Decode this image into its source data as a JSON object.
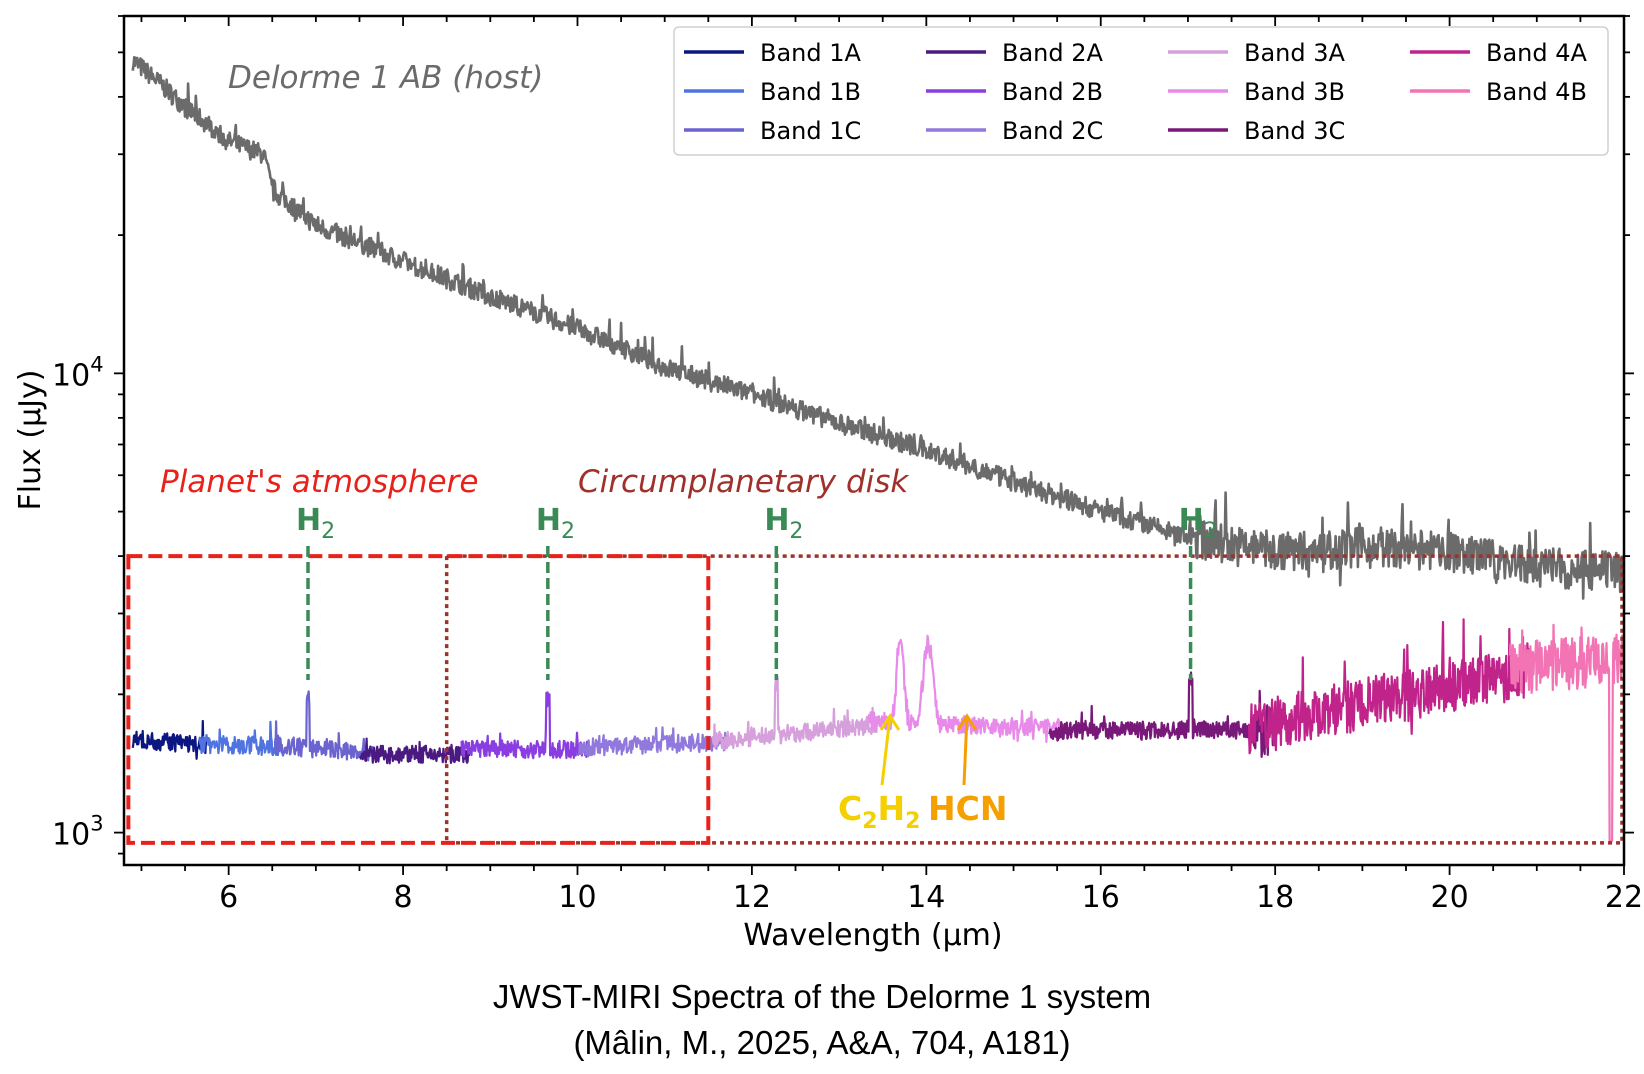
{
  "chart_data": {
    "type": "line",
    "title": "JWST-MIRI Spectra of the Delorme 1 system",
    "subtitle": "(Mâlin, M., 2025, A&A, 704, A181)",
    "xlabel": "Wavelength (μm)",
    "ylabel": "Flux (μJy)",
    "xlim": [
      4.8,
      22
    ],
    "ylim": [
      850,
      60000
    ],
    "yscale": "log",
    "grid": false,
    "x_ticks": [
      6,
      8,
      10,
      12,
      14,
      16,
      18,
      20,
      22
    ],
    "x_tick_labels": [
      "6",
      "8",
      "10",
      "12",
      "14",
      "16",
      "18",
      "20",
      "22"
    ],
    "y_ticks": [
      1000,
      10000
    ],
    "y_tick_labels": [
      {
        "base": "10",
        "exp": "3"
      },
      {
        "base": "10",
        "exp": "4"
      }
    ],
    "legend": {
      "placement": "top-right",
      "entries": [
        {
          "label": "Band 1A",
          "color": "#0b1680"
        },
        {
          "label": "Band 1B",
          "color": "#4f73e0"
        },
        {
          "label": "Band 1C",
          "color": "#6a63d0"
        },
        {
          "label": "Band 2A",
          "color": "#4b1a80"
        },
        {
          "label": "Band 2B",
          "color": "#8a3de0"
        },
        {
          "label": "Band 2C",
          "color": "#9178dc"
        },
        {
          "label": "Band 3A",
          "color": "#d6a0dc"
        },
        {
          "label": "Band 3B",
          "color": "#e88aea"
        },
        {
          "label": "Band 3C",
          "color": "#781878"
        },
        {
          "label": "Band 4A",
          "color": "#c0248a"
        },
        {
          "label": "Band 4B",
          "color": "#f274b4"
        }
      ]
    },
    "series": [
      {
        "name": "Delorme 1 AB (host)",
        "color": "#6b6b6b",
        "x": [
          4.9,
          5.5,
          6.0,
          6.4,
          6.5,
          7.0,
          8.0,
          9.0,
          10.0,
          11.0,
          12.0,
          13.0,
          14.0,
          15.0,
          16.0,
          17.0,
          18.0,
          19.0,
          20.0,
          21.0,
          22.0
        ],
        "y": [
          48000,
          38000,
          32000,
          30000,
          25000,
          21000,
          17500,
          14700,
          12500,
          10300,
          9000,
          7800,
          6800,
          5800,
          5000,
          4400,
          4100,
          4200,
          4100,
          3800,
          3700
        ]
      },
      {
        "name": "Band 1A",
        "color": "#0b1680",
        "x": [
          4.9,
          5.74
        ],
        "y": [
          1600,
          1550
        ]
      },
      {
        "name": "Band 1B",
        "color": "#4f73e0",
        "x": [
          5.66,
          6.63
        ],
        "y": [
          1560,
          1540
        ]
      },
      {
        "name": "Band 1C",
        "color": "#6a63d0",
        "x": [
          6.53,
          7.65
        ],
        "y": [
          1540,
          1500
        ]
      },
      {
        "name": "Band 2A",
        "color": "#4b1a80",
        "x": [
          7.51,
          8.77
        ],
        "y": [
          1480,
          1480
        ]
      },
      {
        "name": "Band 2B",
        "color": "#8a3de0",
        "x": [
          8.67,
          10.13
        ],
        "y": [
          1520,
          1520
        ]
      },
      {
        "name": "Band 2C",
        "color": "#9178dc",
        "x": [
          10.02,
          11.7
        ],
        "y": [
          1530,
          1580
        ]
      },
      {
        "name": "Band 3A",
        "color": "#d6a0dc",
        "x": [
          11.55,
          13.47
        ],
        "y": [
          1580,
          1720
        ]
      },
      {
        "name": "Band 3B",
        "color": "#e88aea",
        "x": [
          13.34,
          15.57
        ],
        "y": [
          1750,
          1690
        ]
      },
      {
        "name": "Band 3C",
        "color": "#781878",
        "x": [
          15.41,
          17.98
        ],
        "y": [
          1660,
          1680
        ]
      },
      {
        "name": "Band 4A",
        "color": "#c0248a",
        "x": [
          17.7,
          20.95
        ],
        "y": [
          1700,
          2250
        ]
      },
      {
        "name": "Band 4B",
        "color": "#f274b4",
        "x": [
          20.69,
          22.0
        ],
        "y": [
          2300,
          2400
        ]
      }
    ],
    "annotations": {
      "host_label": {
        "text": "Delorme 1 AB (host)",
        "color": "#6b6b6b"
      },
      "region_planet": {
        "text": "Planet's atmosphere",
        "color": "#e8221a",
        "x_range": [
          4.85,
          11.5
        ],
        "y_range": [
          950,
          4000
        ]
      },
      "region_disk": {
        "text": "Circumplanetary disk",
        "color": "#a0302a",
        "x_range": [
          8.5,
          22
        ],
        "y_range": [
          950,
          4000
        ]
      },
      "h2_lines": [
        {
          "label": "H",
          "sub": "2",
          "x": 6.91
        },
        {
          "label": "H",
          "sub": "2",
          "x": 9.66
        },
        {
          "label": "H",
          "sub": "2",
          "x": 12.28
        },
        {
          "label": "H",
          "sub": "2",
          "x": 17.03
        }
      ],
      "molecules": [
        {
          "label": "C",
          "sub1": "2",
          "label2": "H",
          "sub2": "2",
          "x": 13.7,
          "color": "#f5d000"
        },
        {
          "label": "HCN",
          "x": 14.0,
          "color": "#f5a000"
        }
      ]
    }
  }
}
